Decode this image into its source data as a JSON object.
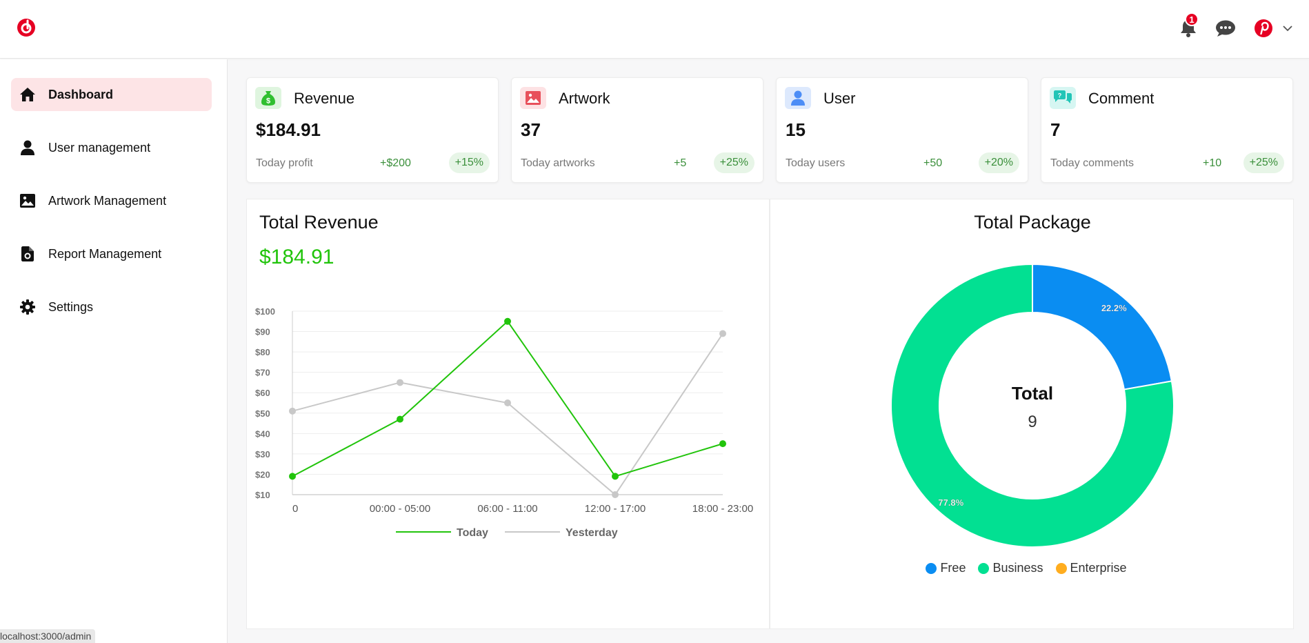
{
  "app": {
    "logo_icon": "brand-logo-icon",
    "notifications": {
      "icon": "bell-icon",
      "count": "1"
    },
    "messages_icon": "chat-icon",
    "profile": {
      "icon": "pinterest-avatar-icon",
      "chevron": "chevron-down-icon"
    }
  },
  "sidebar": {
    "items": [
      {
        "label": "Dashboard",
        "icon": "home-icon",
        "active": true
      },
      {
        "label": "User management",
        "icon": "user-icon",
        "active": false
      },
      {
        "label": "Artwork Management",
        "icon": "image-icon",
        "active": false
      },
      {
        "label": "Report Management",
        "icon": "report-icon",
        "active": false
      },
      {
        "label": "Settings",
        "icon": "gear-icon",
        "active": false
      }
    ]
  },
  "status_bar": {
    "url": "localhost:3000/admin"
  },
  "cards": [
    {
      "title": "Revenue",
      "value": "$184.91",
      "sub": "Today profit",
      "delta": "+$200",
      "pct": "+15%",
      "icon": "money-bag-icon",
      "icon_color": "#2fbf2f",
      "icon_bg": "#dff5df"
    },
    {
      "title": "Artwork",
      "value": "37",
      "sub": "Today artworks",
      "delta": "+5",
      "pct": "+25%",
      "icon": "image-icon",
      "icon_color": "#e8505b",
      "icon_bg": "#fde2e4"
    },
    {
      "title": "User",
      "value": "15",
      "sub": "Today users",
      "delta": "+50",
      "pct": "+20%",
      "icon": "user-icon",
      "icon_color": "#4c8df6",
      "icon_bg": "#dde9fd"
    },
    {
      "title": "Comment",
      "value": "7",
      "sub": "Today comments",
      "delta": "+10",
      "pct": "+25%",
      "icon": "comments-icon",
      "icon_color": "#22c5b7",
      "icon_bg": "#d6f6f2"
    }
  ],
  "revenue_panel": {
    "title": "Total Revenue",
    "total": "$184.91"
  },
  "package_panel": {
    "title": "Total Package",
    "center_label": "Total",
    "center_value": "9"
  },
  "colors": {
    "today": "#21c40b",
    "yesterday": "#c8c8c8",
    "free": "#0a8df2",
    "business": "#02e092",
    "enterprise": "#ffad1f",
    "accent": "#e60023"
  },
  "chart_data": [
    {
      "type": "line",
      "categories": [
        "0",
        "00:00 - 05:00",
        "06:00 - 11:00",
        "12:00 - 17:00",
        "18:00 - 23:00"
      ],
      "series": [
        {
          "name": "Today",
          "values": [
            19,
            47,
            95,
            19,
            35
          ]
        },
        {
          "name": "Yesterday",
          "values": [
            51,
            65,
            55,
            10,
            89
          ]
        }
      ],
      "yticks": [
        "$10",
        "$20",
        "$30",
        "$40",
        "$50",
        "$60",
        "$70",
        "$80",
        "$90",
        "$100"
      ],
      "ylim": [
        10,
        100
      ],
      "grid": true,
      "legend": "bottom"
    },
    {
      "type": "pie",
      "donut": true,
      "labels": [
        "Free",
        "Business",
        "Enterprise"
      ],
      "values": [
        2,
        7,
        0
      ],
      "slice_labels": [
        "22.2%",
        "77.8%",
        ""
      ],
      "legend": "bottom"
    }
  ]
}
